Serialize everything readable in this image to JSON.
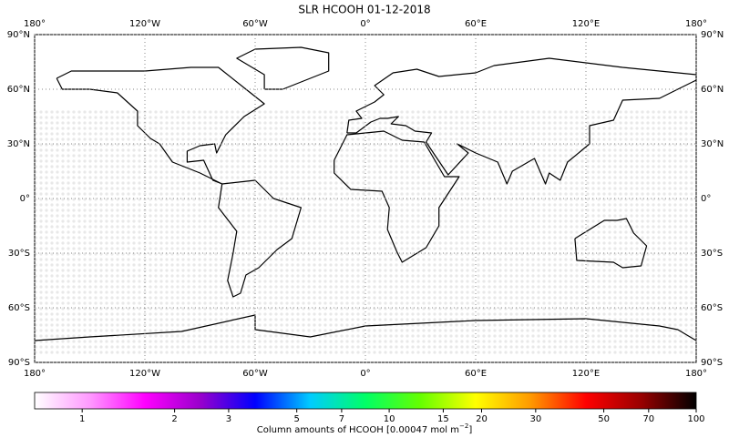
{
  "chart_data": {
    "type": "map",
    "title": "SLR HCOOH 01-12-2018",
    "xlim": [
      -180,
      180
    ],
    "ylim": [
      -90,
      90
    ],
    "xticks": [
      {
        "value": -180,
        "label": "180°"
      },
      {
        "value": -120,
        "label": "120°W"
      },
      {
        "value": -60,
        "label": "60°W"
      },
      {
        "value": 0,
        "label": "0°"
      },
      {
        "value": 60,
        "label": "60°E"
      },
      {
        "value": 120,
        "label": "120°E"
      },
      {
        "value": 180,
        "label": "180°"
      }
    ],
    "yticks": [
      {
        "value": 90,
        "label": "90°N"
      },
      {
        "value": 60,
        "label": "60°N"
      },
      {
        "value": 30,
        "label": "30°N"
      },
      {
        "value": 0,
        "label": "0°"
      },
      {
        "value": -30,
        "label": "30°S"
      },
      {
        "value": -60,
        "label": "60°S"
      },
      {
        "value": -90,
        "label": "90°S"
      }
    ],
    "grid": true,
    "colorbar": {
      "log_scale": true,
      "lim": [
        0.7,
        100
      ],
      "ticks": [
        1,
        2,
        3,
        5,
        7,
        10,
        15,
        20,
        30,
        50,
        70,
        100
      ],
      "colors": [
        "#ffffff",
        "#ff99ff",
        "#ff00ff",
        "#9900cc",
        "#0000ff",
        "#00ccff",
        "#00ff66",
        "#66ff00",
        "#ffff00",
        "#ff9900",
        "#ff0000",
        "#990000",
        "#000000"
      ],
      "label_text": "Column amounts of HCOOH [0.00047 mol m",
      "label_exponent": "−2",
      "label_end": "]"
    }
  }
}
